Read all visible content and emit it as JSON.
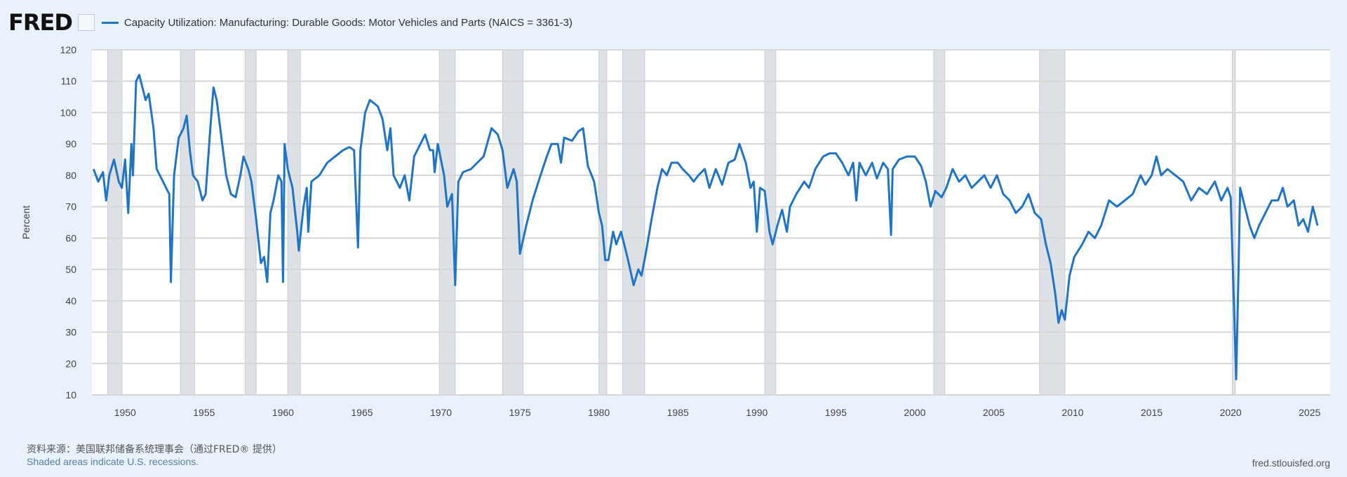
{
  "header": {
    "logo": "FRED",
    "series_title": "Capacity Utilization: Manufacturing: Durable Goods: Motor Vehicles and Parts (NAICS = 3361-3)"
  },
  "footer": {
    "source": "资料来源：美国联邦储备系统理事会（通过FRED® 提供）",
    "note": "Shaded areas indicate U.S. recessions.",
    "site": "fred.stlouisfed.org"
  },
  "chart_data": {
    "type": "line",
    "title": "Capacity Utilization: Manufacturing: Durable Goods: Motor Vehicles and Parts (NAICS = 3361-3)",
    "xlabel": "",
    "ylabel": "Percent",
    "xlim": [
      1947.9,
      2026.3
    ],
    "ylim": [
      10,
      120
    ],
    "yticks": [
      10,
      20,
      30,
      40,
      50,
      60,
      70,
      80,
      90,
      100,
      110,
      120
    ],
    "xticks": [
      1950,
      1955,
      1960,
      1965,
      1970,
      1975,
      1980,
      1985,
      1990,
      1995,
      2000,
      2005,
      2010,
      2015,
      2020,
      2025
    ],
    "grid": true,
    "line_color": "#1f74c6",
    "recession_color": "#dde1e6",
    "recessions": [
      [
        1948.9,
        1949.8
      ],
      [
        1953.5,
        1954.4
      ],
      [
        1957.6,
        1958.3
      ],
      [
        1960.3,
        1961.1
      ],
      [
        1969.9,
        1970.9
      ],
      [
        1973.9,
        1975.2
      ],
      [
        1980.0,
        1980.5
      ],
      [
        1981.5,
        1982.9
      ],
      [
        1990.5,
        1991.2
      ],
      [
        2001.2,
        2001.9
      ],
      [
        2007.9,
        2009.5
      ],
      [
        2020.1,
        2020.3
      ]
    ],
    "series": [
      {
        "name": "Capacity Utilization: Manufacturing: Durable Goods: Motor Vehicles and Parts (NAICS = 3361-3)",
        "points": [
          [
            1948.0,
            82
          ],
          [
            1948.3,
            78
          ],
          [
            1948.6,
            81
          ],
          [
            1948.8,
            72
          ],
          [
            1949.0,
            80
          ],
          [
            1949.3,
            85
          ],
          [
            1949.6,
            78
          ],
          [
            1949.8,
            76
          ],
          [
            1950.0,
            85
          ],
          [
            1950.2,
            68
          ],
          [
            1950.4,
            90
          ],
          [
            1950.5,
            80
          ],
          [
            1950.7,
            110
          ],
          [
            1950.9,
            112
          ],
          [
            1951.1,
            108
          ],
          [
            1951.3,
            104
          ],
          [
            1951.5,
            106
          ],
          [
            1951.8,
            95
          ],
          [
            1952.0,
            82
          ],
          [
            1952.3,
            79
          ],
          [
            1952.6,
            76
          ],
          [
            1952.8,
            74
          ],
          [
            1952.9,
            46
          ],
          [
            1953.1,
            80
          ],
          [
            1953.4,
            92
          ],
          [
            1953.7,
            95
          ],
          [
            1953.9,
            99
          ],
          [
            1954.1,
            88
          ],
          [
            1954.3,
            80
          ],
          [
            1954.6,
            78
          ],
          [
            1954.9,
            72
          ],
          [
            1955.1,
            74
          ],
          [
            1955.4,
            95
          ],
          [
            1955.6,
            108
          ],
          [
            1955.8,
            104
          ],
          [
            1956.1,
            92
          ],
          [
            1956.4,
            80
          ],
          [
            1956.7,
            74
          ],
          [
            1957.0,
            73
          ],
          [
            1957.3,
            80
          ],
          [
            1957.5,
            86
          ],
          [
            1957.8,
            82
          ],
          [
            1958.0,
            78
          ],
          [
            1958.3,
            66
          ],
          [
            1958.6,
            52
          ],
          [
            1958.8,
            54
          ],
          [
            1959.0,
            46
          ],
          [
            1959.2,
            68
          ],
          [
            1959.4,
            72
          ],
          [
            1959.7,
            80
          ],
          [
            1959.9,
            78
          ],
          [
            1960.0,
            46
          ],
          [
            1960.1,
            90
          ],
          [
            1960.3,
            82
          ],
          [
            1960.6,
            76
          ],
          [
            1960.9,
            62
          ],
          [
            1961.0,
            56
          ],
          [
            1961.3,
            70
          ],
          [
            1961.5,
            76
          ],
          [
            1961.6,
            62
          ],
          [
            1961.8,
            78
          ],
          [
            1962.3,
            80
          ],
          [
            1962.8,
            84
          ],
          [
            1963.3,
            86
          ],
          [
            1963.8,
            88
          ],
          [
            1964.2,
            89
          ],
          [
            1964.5,
            88
          ],
          [
            1964.75,
            57
          ],
          [
            1964.9,
            88
          ],
          [
            1965.2,
            100
          ],
          [
            1965.5,
            104
          ],
          [
            1966.0,
            102
          ],
          [
            1966.3,
            98
          ],
          [
            1966.6,
            88
          ],
          [
            1966.8,
            95
          ],
          [
            1967.0,
            80
          ],
          [
            1967.4,
            76
          ],
          [
            1967.7,
            80
          ],
          [
            1968.0,
            72
          ],
          [
            1968.3,
            86
          ],
          [
            1968.7,
            90
          ],
          [
            1969.0,
            93
          ],
          [
            1969.3,
            88
          ],
          [
            1969.5,
            88
          ],
          [
            1969.6,
            81
          ],
          [
            1969.8,
            90
          ],
          [
            1970.2,
            80
          ],
          [
            1970.4,
            70
          ],
          [
            1970.7,
            74
          ],
          [
            1970.9,
            45
          ],
          [
            1971.1,
            78
          ],
          [
            1971.4,
            81
          ],
          [
            1971.9,
            82
          ],
          [
            1972.3,
            84
          ],
          [
            1972.7,
            86
          ],
          [
            1973.2,
            95
          ],
          [
            1973.6,
            93
          ],
          [
            1973.9,
            88
          ],
          [
            1974.2,
            76
          ],
          [
            1974.6,
            82
          ],
          [
            1974.8,
            78
          ],
          [
            1975.0,
            55
          ],
          [
            1975.4,
            64
          ],
          [
            1975.8,
            72
          ],
          [
            1976.3,
            80
          ],
          [
            1976.7,
            86
          ],
          [
            1977.0,
            90
          ],
          [
            1977.4,
            90
          ],
          [
            1977.6,
            84
          ],
          [
            1977.8,
            92
          ],
          [
            1978.3,
            91
          ],
          [
            1978.7,
            94
          ],
          [
            1979.0,
            95
          ],
          [
            1979.3,
            83
          ],
          [
            1979.7,
            78
          ],
          [
            1980.0,
            68
          ],
          [
            1980.2,
            64
          ],
          [
            1980.4,
            53
          ],
          [
            1980.6,
            53
          ],
          [
            1980.9,
            62
          ],
          [
            1981.1,
            58
          ],
          [
            1981.4,
            62
          ],
          [
            1981.8,
            54
          ],
          [
            1982.2,
            45
          ],
          [
            1982.5,
            50
          ],
          [
            1982.7,
            48
          ],
          [
            1983.0,
            56
          ],
          [
            1983.3,
            65
          ],
          [
            1983.7,
            76
          ],
          [
            1984.0,
            82
          ],
          [
            1984.3,
            80
          ],
          [
            1984.6,
            84
          ],
          [
            1985.0,
            84
          ],
          [
            1985.3,
            82
          ],
          [
            1985.7,
            80
          ],
          [
            1986.0,
            78
          ],
          [
            1986.3,
            80
          ],
          [
            1986.7,
            82
          ],
          [
            1987.0,
            76
          ],
          [
            1987.4,
            82
          ],
          [
            1987.8,
            77
          ],
          [
            1988.2,
            84
          ],
          [
            1988.6,
            85
          ],
          [
            1988.9,
            90
          ],
          [
            1989.3,
            84
          ],
          [
            1989.6,
            76
          ],
          [
            1989.8,
            78
          ],
          [
            1990.0,
            62
          ],
          [
            1990.2,
            76
          ],
          [
            1990.5,
            75
          ],
          [
            1990.8,
            62
          ],
          [
            1991.0,
            58
          ],
          [
            1991.3,
            64
          ],
          [
            1991.6,
            69
          ],
          [
            1991.9,
            62
          ],
          [
            1992.1,
            70
          ],
          [
            1992.5,
            74
          ],
          [
            1993.0,
            78
          ],
          [
            1993.3,
            76
          ],
          [
            1993.7,
            82
          ],
          [
            1994.2,
            86
          ],
          [
            1994.6,
            87
          ],
          [
            1995.0,
            87
          ],
          [
            1995.4,
            84
          ],
          [
            1995.8,
            80
          ],
          [
            1996.1,
            84
          ],
          [
            1996.3,
            72
          ],
          [
            1996.5,
            84
          ],
          [
            1996.9,
            80
          ],
          [
            1997.3,
            84
          ],
          [
            1997.6,
            79
          ],
          [
            1998.0,
            84
          ],
          [
            1998.3,
            82
          ],
          [
            1998.5,
            61
          ],
          [
            1998.6,
            82
          ],
          [
            1999.0,
            85
          ],
          [
            1999.5,
            86
          ],
          [
            2000.0,
            86
          ],
          [
            2000.4,
            83
          ],
          [
            2000.7,
            78
          ],
          [
            2001.0,
            70
          ],
          [
            2001.3,
            75
          ],
          [
            2001.7,
            73
          ],
          [
            2002.0,
            76
          ],
          [
            2002.4,
            82
          ],
          [
            2002.8,
            78
          ],
          [
            2003.2,
            80
          ],
          [
            2003.6,
            76
          ],
          [
            2004.0,
            78
          ],
          [
            2004.4,
            80
          ],
          [
            2004.8,
            76
          ],
          [
            2005.2,
            80
          ],
          [
            2005.6,
            74
          ],
          [
            2006.0,
            72
          ],
          [
            2006.4,
            68
          ],
          [
            2006.8,
            70
          ],
          [
            2007.2,
            74
          ],
          [
            2007.6,
            68
          ],
          [
            2008.0,
            66
          ],
          [
            2008.3,
            58
          ],
          [
            2008.6,
            52
          ],
          [
            2008.9,
            42
          ],
          [
            2009.1,
            33
          ],
          [
            2009.3,
            37
          ],
          [
            2009.5,
            34
          ],
          [
            2009.8,
            48
          ],
          [
            2010.1,
            54
          ],
          [
            2010.6,
            58
          ],
          [
            2011.0,
            62
          ],
          [
            2011.4,
            60
          ],
          [
            2011.8,
            64
          ],
          [
            2012.3,
            72
          ],
          [
            2012.8,
            70
          ],
          [
            2013.3,
            72
          ],
          [
            2013.8,
            74
          ],
          [
            2014.3,
            80
          ],
          [
            2014.6,
            77
          ],
          [
            2015.0,
            80
          ],
          [
            2015.3,
            86
          ],
          [
            2015.6,
            80
          ],
          [
            2016.0,
            82
          ],
          [
            2016.5,
            80
          ],
          [
            2017.0,
            78
          ],
          [
            2017.5,
            72
          ],
          [
            2018.0,
            76
          ],
          [
            2018.5,
            74
          ],
          [
            2019.0,
            78
          ],
          [
            2019.4,
            72
          ],
          [
            2019.8,
            76
          ],
          [
            2020.0,
            73
          ],
          [
            2020.2,
            40
          ],
          [
            2020.35,
            15
          ],
          [
            2020.5,
            50
          ],
          [
            2020.6,
            76
          ],
          [
            2020.9,
            70
          ],
          [
            2021.2,
            64
          ],
          [
            2021.5,
            60
          ],
          [
            2021.8,
            64
          ],
          [
            2022.2,
            68
          ],
          [
            2022.6,
            72
          ],
          [
            2023.0,
            72
          ],
          [
            2023.3,
            76
          ],
          [
            2023.6,
            70
          ],
          [
            2024.0,
            72
          ],
          [
            2024.3,
            64
          ],
          [
            2024.6,
            66
          ],
          [
            2024.9,
            62
          ],
          [
            2025.2,
            70
          ],
          [
            2025.5,
            64
          ]
        ]
      }
    ]
  }
}
